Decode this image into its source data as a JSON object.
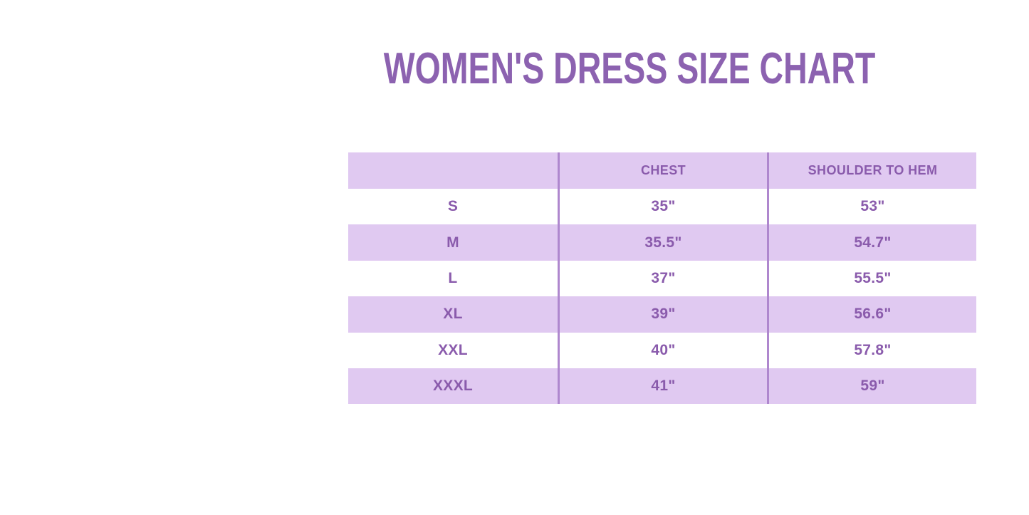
{
  "colors": {
    "title_text": "#8C62B0",
    "table_text": "#8A5BAC",
    "row_fill_lavender": "#E0C9F1",
    "row_fill_white": "#FFFFFF",
    "column_divider": "#AF87CE",
    "page_background": "#FFFFFF"
  },
  "chart_data": {
    "type": "table",
    "title": "WOMEN'S DRESS SIZE CHART",
    "columns": [
      "",
      "CHEST",
      "SHOULDER TO HEM"
    ],
    "rows": [
      [
        "S",
        "35\"",
        "53\""
      ],
      [
        "M",
        "35.5\"",
        "54.7\""
      ],
      [
        "L",
        "37\"",
        "55.5\""
      ],
      [
        "XL",
        "39\"",
        "56.6\""
      ],
      [
        "XXL",
        "40\"",
        "57.8\""
      ],
      [
        "XXXL",
        "41\"",
        "59\""
      ]
    ],
    "layout": {
      "row_striping": "header lavender, then alternating white/lavender",
      "grid": "two internal vertical dividers, no outer border, no horizontal rules"
    }
  }
}
